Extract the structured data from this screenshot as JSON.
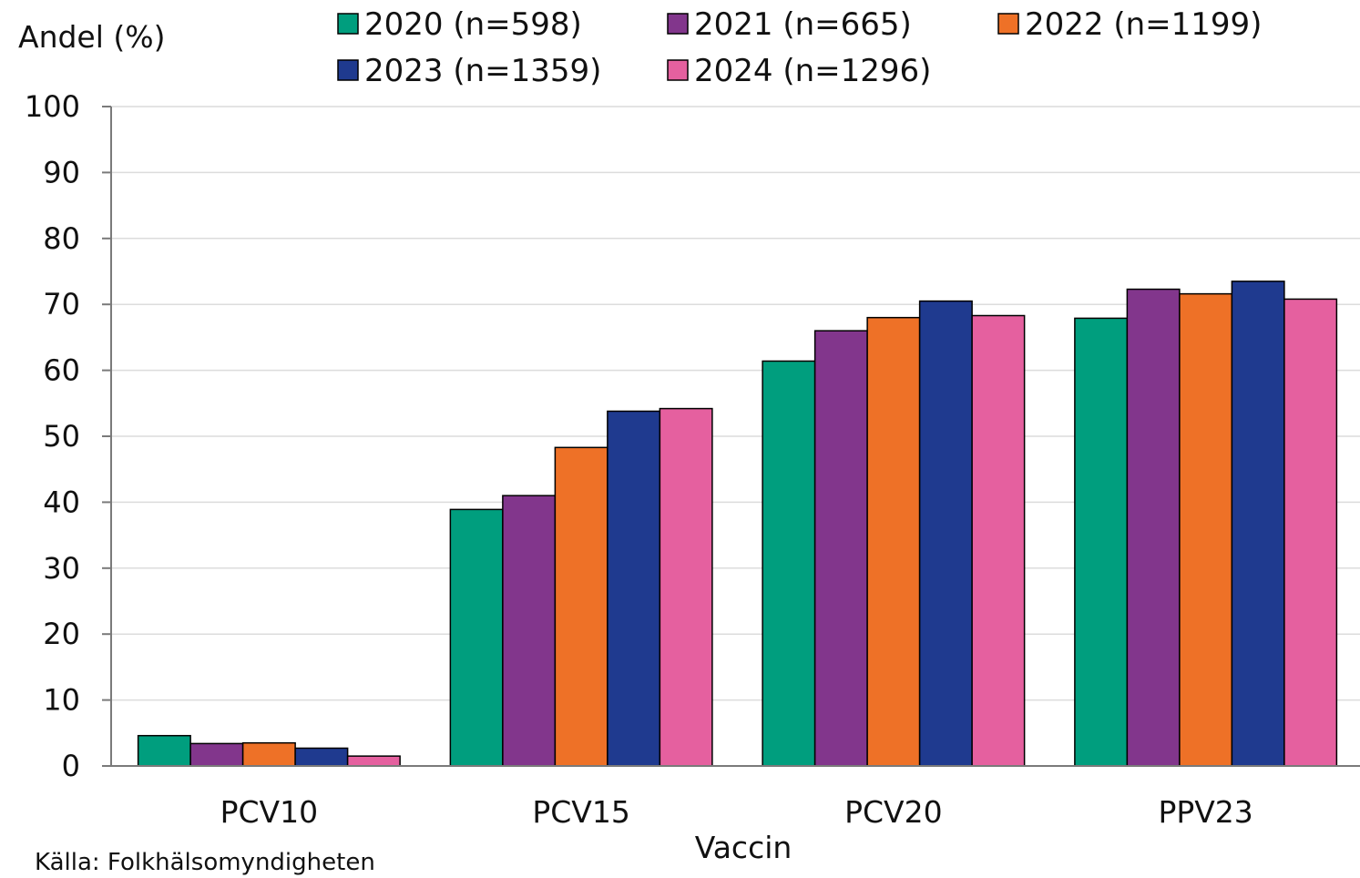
{
  "chart_data": {
    "type": "bar",
    "ylabel": "Andel (%)",
    "xlabel": "Vaccin",
    "source": "Källa: Folkhälsomyndigheten",
    "ylim": [
      0,
      100
    ],
    "yticks": [
      0,
      10,
      20,
      30,
      40,
      50,
      60,
      70,
      80,
      90,
      100
    ],
    "grid": true,
    "legend_position": "top",
    "categories": [
      "PCV10",
      "PCV15",
      "PCV20",
      "PPV23"
    ],
    "series": [
      {
        "name": "2020 (n=598)",
        "color": "#009e7e",
        "values": [
          4.6,
          38.9,
          61.4,
          67.9
        ]
      },
      {
        "name": "2021 (n=665)",
        "color": "#82368c",
        "values": [
          3.4,
          41.0,
          66.0,
          72.3
        ]
      },
      {
        "name": "2022 (n=1199)",
        "color": "#ee7127",
        "values": [
          3.5,
          48.3,
          68.0,
          71.6
        ]
      },
      {
        "name": "2023 (n=1359)",
        "color": "#1f3a8f",
        "values": [
          2.7,
          53.8,
          70.5,
          73.5
        ]
      },
      {
        "name": "2024 (n=1296)",
        "color": "#e5609f",
        "values": [
          1.5,
          54.2,
          68.3,
          70.8
        ]
      }
    ]
  }
}
